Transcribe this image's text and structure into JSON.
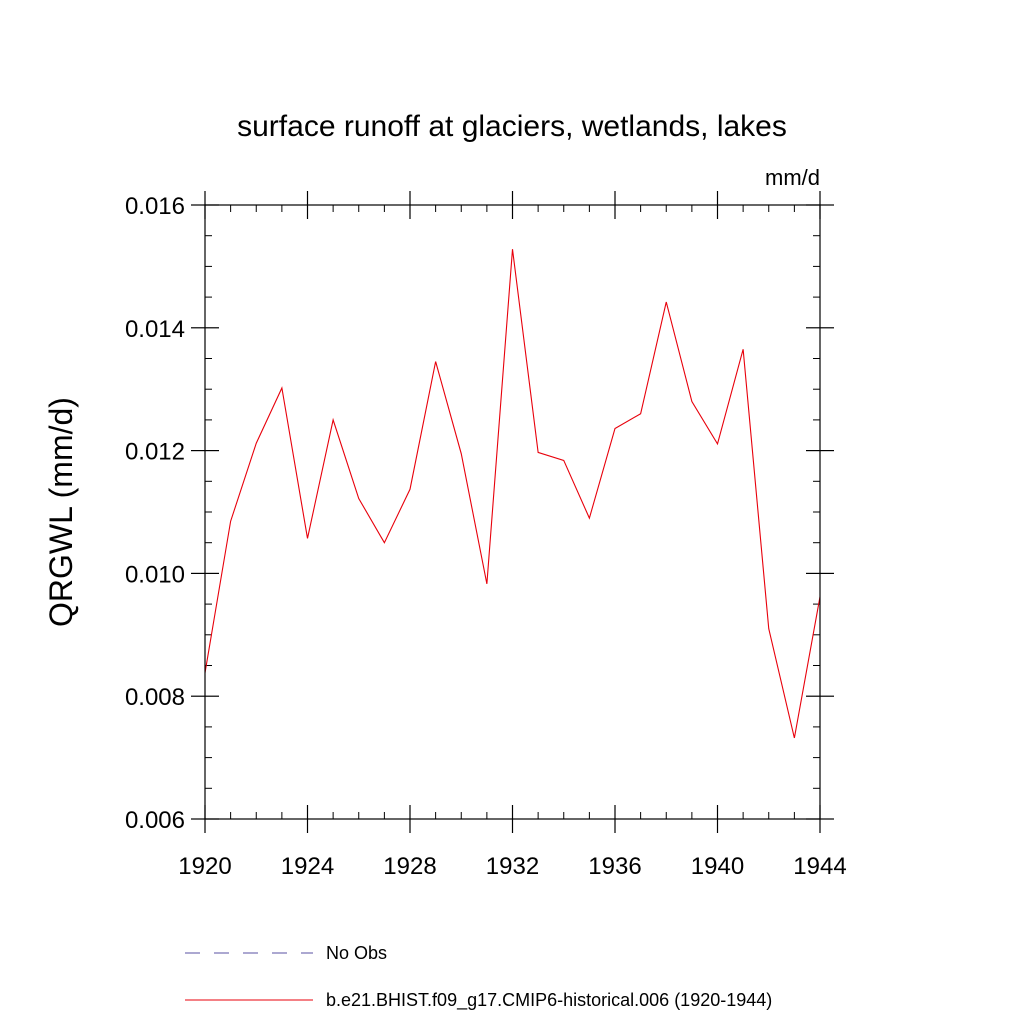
{
  "chart_data": {
    "type": "line",
    "title": "surface runoff at glaciers, wetlands, lakes",
    "units_label": "mm/d",
    "xlabel": "",
    "ylabel": "QRGWL  (mm/d)",
    "xlim": [
      1920,
      1944
    ],
    "ylim": [
      0.006,
      0.016
    ],
    "x_ticks": [
      1920,
      1924,
      1928,
      1932,
      1936,
      1940,
      1944
    ],
    "x_tick_labels": [
      "1920",
      "1924",
      "1928",
      "1932",
      "1936",
      "1940",
      "1944"
    ],
    "y_ticks": [
      0.006,
      0.008,
      0.01,
      0.012,
      0.014,
      0.016
    ],
    "y_tick_labels": [
      "0.006",
      "0.008",
      "0.010",
      "0.012",
      "0.014",
      "0.016"
    ],
    "grid": false,
    "legend_position": "bottom",
    "series": [
      {
        "name": "b.e21.BHIST.f09_g17.CMIP6-historical.006 (1920-1944)",
        "color": "#e8000b",
        "style": "solid",
        "x": [
          1920,
          1921,
          1922,
          1923,
          1924,
          1925,
          1926,
          1927,
          1928,
          1929,
          1930,
          1931,
          1932,
          1933,
          1934,
          1935,
          1936,
          1937,
          1938,
          1939,
          1940,
          1941,
          1942,
          1943,
          1944
        ],
        "y": [
          0.00838,
          0.01085,
          0.01212,
          0.01302,
          0.01057,
          0.0125,
          0.01122,
          0.0105,
          0.01137,
          0.01345,
          0.01195,
          0.00983,
          0.01528,
          0.01197,
          0.01184,
          0.0109,
          0.01236,
          0.0126,
          0.01442,
          0.0128,
          0.01211,
          0.01365,
          0.0091,
          0.00732,
          0.00962
        ]
      }
    ],
    "legend": [
      {
        "label": "No Obs",
        "color": "#5a52a3",
        "style": "dashed"
      },
      {
        "label": "b.e21.BHIST.f09_g17.CMIP6-historical.006 (1920-1944)",
        "color": "#e8000b",
        "style": "solid"
      }
    ]
  }
}
